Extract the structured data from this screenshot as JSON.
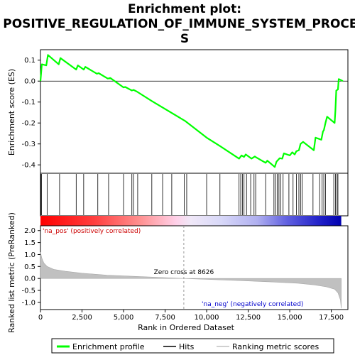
{
  "chart_data": {
    "type": "line",
    "title_line1": "Enrichment plot:",
    "title_line2": "POSITIVE_REGULATION_OF_IMMUNE_SYSTEM_PROCES",
    "title_line3": "S",
    "top_panel": {
      "ylabel": "Enrichment score (ES)",
      "ylim": [
        -0.44,
        0.15
      ],
      "yticks": [
        0.1,
        0.0,
        -0.1,
        -0.2,
        -0.3,
        -0.4
      ],
      "ytick_labels": [
        "0.1",
        "0.0",
        "-0.1",
        "-0.2",
        "-0.3",
        "-0.4"
      ],
      "es_profile": [
        [
          0,
          0.0
        ],
        [
          80,
          0.08
        ],
        [
          350,
          0.075
        ],
        [
          450,
          0.125
        ],
        [
          1100,
          0.08
        ],
        [
          1200,
          0.11
        ],
        [
          2150,
          0.055
        ],
        [
          2250,
          0.075
        ],
        [
          2600,
          0.055
        ],
        [
          2700,
          0.068
        ],
        [
          3400,
          0.035
        ],
        [
          3500,
          0.038
        ],
        [
          4050,
          0.012
        ],
        [
          4200,
          0.015
        ],
        [
          5000,
          -0.03
        ],
        [
          5100,
          -0.028
        ],
        [
          5500,
          -0.045
        ],
        [
          5600,
          -0.042
        ],
        [
          5800,
          -0.05
        ],
        [
          6700,
          -0.095
        ],
        [
          8700,
          -0.19
        ],
        [
          10000,
          -0.27
        ],
        [
          10800,
          -0.31
        ],
        [
          11950,
          -0.37
        ],
        [
          12100,
          -0.355
        ],
        [
          12250,
          -0.362
        ],
        [
          12350,
          -0.35
        ],
        [
          12700,
          -0.37
        ],
        [
          12900,
          -0.36
        ],
        [
          13000,
          -0.365
        ],
        [
          13550,
          -0.39
        ],
        [
          13650,
          -0.38
        ],
        [
          14100,
          -0.41
        ],
        [
          14200,
          -0.385
        ],
        [
          14400,
          -0.368
        ],
        [
          14550,
          -0.37
        ],
        [
          14650,
          -0.345
        ],
        [
          15000,
          -0.355
        ],
        [
          15150,
          -0.34
        ],
        [
          15300,
          -0.35
        ],
        [
          15400,
          -0.335
        ],
        [
          15550,
          -0.33
        ],
        [
          15650,
          -0.3
        ],
        [
          15800,
          -0.29
        ],
        [
          16450,
          -0.33
        ],
        [
          16550,
          -0.27
        ],
        [
          16900,
          -0.28
        ],
        [
          17000,
          -0.24
        ],
        [
          17050,
          -0.235
        ],
        [
          17150,
          -0.2
        ],
        [
          17250,
          -0.17
        ],
        [
          17700,
          -0.2
        ],
        [
          17750,
          -0.14
        ],
        [
          17800,
          -0.045
        ],
        [
          17900,
          -0.04
        ],
        [
          17950,
          0.01
        ],
        [
          18200,
          0.0
        ]
      ],
      "hits": [
        30,
        60,
        400,
        1150,
        2150,
        2600,
        3450,
        4100,
        5000,
        5500,
        5600,
        5850,
        6700,
        7350,
        7900,
        8650,
        8800,
        10000,
        10800,
        11950,
        12050,
        12150,
        12250,
        12400,
        12650,
        12850,
        12950,
        13550,
        14050,
        14150,
        14250,
        14350,
        14450,
        14600,
        14950,
        15200,
        15400,
        15550,
        15650,
        15750,
        16400,
        16800,
        16950,
        17050,
        17150,
        17650,
        17750,
        17850,
        17900
      ]
    },
    "bottom_panel": {
      "xlabel": "Rank in Ordered Dataset",
      "ylabel": "Ranked list metric (PreRanked)",
      "ylim": [
        -1.3,
        2.2
      ],
      "yticks": [
        2.0,
        1.5,
        1.0,
        0.5,
        0.0,
        -0.5,
        -1.0
      ],
      "ytick_labels": [
        "2.0",
        "1.5",
        "1.0",
        "0.5",
        "0.0",
        "-0.5",
        "-1.0"
      ],
      "xlim": [
        0,
        18500
      ],
      "xticks": [
        0,
        2500,
        5000,
        7500,
        10000,
        12500,
        15000,
        17500
      ],
      "xtick_labels": [
        "0",
        "2,500",
        "5,000",
        "7,500",
        "10,000",
        "12,500",
        "15,000",
        "17,500"
      ],
      "metric_curve": [
        [
          0,
          1.1
        ],
        [
          80,
          0.85
        ],
        [
          200,
          0.65
        ],
        [
          400,
          0.5
        ],
        [
          800,
          0.38
        ],
        [
          1500,
          0.3
        ],
        [
          2500,
          0.22
        ],
        [
          4000,
          0.14
        ],
        [
          5500,
          0.09
        ],
        [
          7000,
          0.05
        ],
        [
          8626,
          0.0
        ],
        [
          10000,
          -0.04
        ],
        [
          12000,
          -0.09
        ],
        [
          14000,
          -0.15
        ],
        [
          15500,
          -0.2
        ],
        [
          16500,
          -0.27
        ],
        [
          17200,
          -0.35
        ],
        [
          17700,
          -0.45
        ],
        [
          17900,
          -0.6
        ],
        [
          18050,
          -0.9
        ],
        [
          18100,
          -1.25
        ]
      ],
      "zero_cross_rank": 8626,
      "zero_cross_label": "Zero cross at 8626",
      "pos_label": "'na_pos' (positively correlated)",
      "neg_label": "'na_neg' (negatively correlated)"
    },
    "legend": [
      {
        "label": "Enrichment profile",
        "color": "#00ff00"
      },
      {
        "label": "Hits",
        "color": "#000000"
      },
      {
        "label": "Ranking metric scores",
        "color": "#c0c0c0"
      }
    ],
    "colors": {
      "profile": "#00ff00",
      "pos_label": "#cc0000",
      "neg_label": "#0000cc",
      "metric_fill": "#c0c0c0"
    }
  }
}
